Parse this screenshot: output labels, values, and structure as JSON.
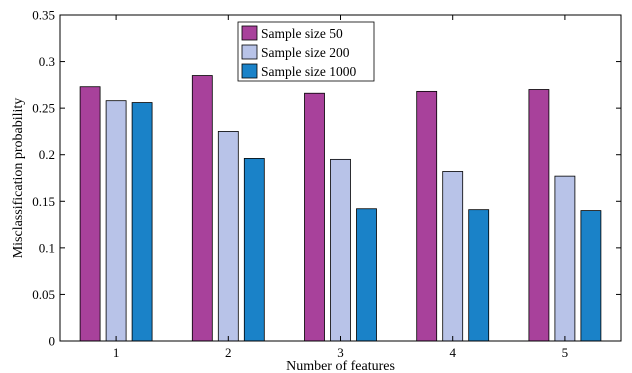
{
  "chart_data": {
    "type": "bar",
    "title": "",
    "xlabel": "Number of features",
    "ylabel": "Misclassification probability",
    "categories": [
      "1",
      "2",
      "3",
      "4",
      "5"
    ],
    "ylim": [
      0,
      0.35
    ],
    "yticks": [
      "0",
      "0.05",
      "0.1",
      "0.15",
      "0.2",
      "0.25",
      "0.3",
      "0.35"
    ],
    "grid": false,
    "legend_position": "top-center",
    "series": [
      {
        "name": "Sample size 50",
        "color": "#a8419b",
        "values": [
          0.273,
          0.285,
          0.266,
          0.268,
          0.27
        ]
      },
      {
        "name": "Sample size 200",
        "color": "#b8c3e8",
        "values": [
          0.258,
          0.225,
          0.195,
          0.182,
          0.177
        ]
      },
      {
        "name": "Sample size 1000",
        "color": "#1a82c8",
        "values": [
          0.256,
          0.196,
          0.142,
          0.141,
          0.14
        ]
      }
    ]
  }
}
